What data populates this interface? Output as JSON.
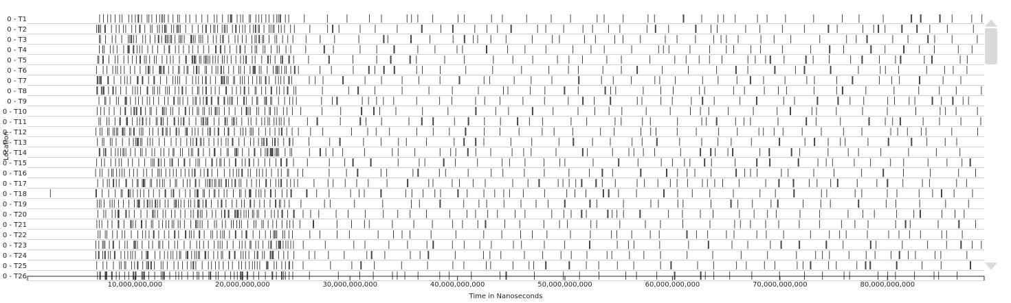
{
  "chart_data": {
    "type": "timeline",
    "ylabel": "Location",
    "xlabel": "Time in Nanoseconds",
    "xlim": [
      0,
      89000000000
    ],
    "x_ticks": [
      0,
      10000000000,
      20000000000,
      30000000000,
      40000000000,
      50000000000,
      60000000000,
      70000000000,
      80000000000
    ],
    "x_tick_labels": [
      "",
      "10,000,000,000",
      "20,000,000,000",
      "30,000,000,000",
      "40,000,000,000",
      "50,000,000,000",
      "60,000,000,000",
      "70,000,000,000",
      "80,000,000,000"
    ],
    "locations": [
      "0 - T1",
      "0 - T2",
      "0 - T3",
      "0 - T4",
      "0 - T5",
      "0 - T6",
      "0 - T7",
      "0 - T8",
      "0 - T9",
      "0 - T10",
      "0 - T11",
      "0 - T12",
      "0 - T13",
      "0 - T14",
      "0 - T15",
      "0 - T16",
      "0 - T17",
      "0 - T18",
      "0 - T19",
      "0 - T20",
      "0 - T21",
      "0 - T22",
      "0 - T23",
      "0 - T24",
      "0 - T25",
      "0 - T26"
    ],
    "busy_interval": [
      6500000000,
      24800000000
    ],
    "observed_interval": [
      6300000000,
      88800000000
    ],
    "t18_outlier": 2100000000,
    "event_color": "#444444",
    "row_line_color": "#cfcfcf"
  },
  "scrollbar": {
    "up_icon": "triangle-up-icon",
    "down_icon": "triangle-down-icon"
  }
}
